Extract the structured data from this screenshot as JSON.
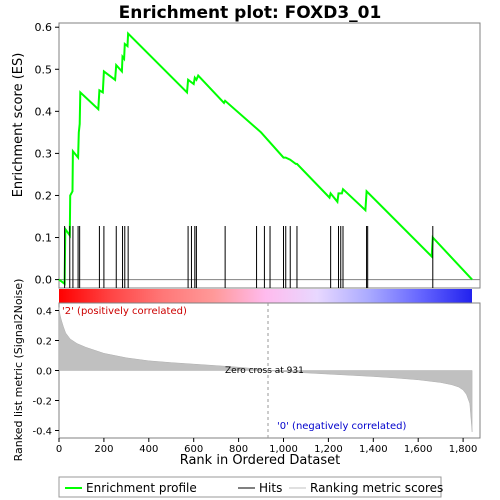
{
  "chart_data": {
    "type": "line",
    "title": "Enrichment plot: FOXD3_01",
    "es_panel": {
      "ylabel": "Enrichment score (ES)",
      "ylim": [
        -0.02,
        0.61
      ],
      "yticks": [
        "0.0",
        "0.1",
        "0.2",
        "0.3",
        "0.4",
        "0.5",
        "0.6"
      ],
      "ytick_values": [
        0.0,
        0.1,
        0.2,
        0.3,
        0.4,
        0.5,
        0.6
      ],
      "xlim": [
        0,
        1900
      ],
      "series": [
        {
          "name": "Enrichment profile",
          "color": "#00ff00",
          "x": [
            0,
            25,
            28,
            48,
            50,
            60,
            62,
            85,
            88,
            92,
            95,
            175,
            180,
            195,
            200,
            250,
            255,
            280,
            283,
            290,
            293,
            305,
            308,
            570,
            575,
            600,
            605,
            612,
            620,
            735,
            740,
            900,
            1000,
            1010,
            1030,
            1055,
            1060,
            1205,
            1210,
            1240,
            1245,
            1260,
            1265,
            1365,
            1370,
            1660,
            1665,
            1840
          ],
          "y": [
            0.0,
            -0.01,
            0.12,
            0.105,
            0.2,
            0.21,
            0.305,
            0.29,
            0.35,
            0.37,
            0.445,
            0.405,
            0.45,
            0.445,
            0.495,
            0.475,
            0.51,
            0.495,
            0.53,
            0.525,
            0.56,
            0.555,
            0.585,
            0.445,
            0.475,
            0.465,
            0.48,
            0.475,
            0.485,
            0.42,
            0.425,
            0.35,
            0.29,
            0.29,
            0.285,
            0.275,
            0.275,
            0.195,
            0.205,
            0.185,
            0.205,
            0.205,
            0.215,
            0.165,
            0.21,
            0.055,
            0.1,
            0.0
          ]
        }
      ]
    },
    "hits": [
      25,
      48,
      62,
      85,
      92,
      180,
      200,
      255,
      283,
      293,
      308,
      575,
      590,
      605,
      612,
      740,
      880,
      915,
      940,
      1000,
      1010,
      1030,
      1060,
      1210,
      1245,
      1255,
      1265,
      1370,
      1375,
      1665
    ],
    "color_bar": {
      "stops": [
        "#ff0000",
        "#ff4444",
        "#ff7777",
        "#ff9999",
        "#ffbbee",
        "#e8d8ff",
        "#aaaaff",
        "#6666ff",
        "#2222ee"
      ]
    },
    "metric_panel": {
      "ylabel": "Ranked list metric (Signal2Noise)",
      "xlabel": "Rank in Ordered Dataset",
      "ylim": [
        -0.45,
        0.45
      ],
      "yticks": [
        "0.4",
        "0.2",
        "0.0",
        "-0.2",
        "-0.4"
      ],
      "ytick_values": [
        0.4,
        0.2,
        0.0,
        -0.2,
        -0.4
      ],
      "xticks": [
        "0",
        "200",
        "400",
        "600",
        "800",
        "1,000",
        "1,200",
        "1,400",
        "1,600",
        "1,800"
      ],
      "xtick_values": [
        0,
        200,
        400,
        600,
        800,
        1000,
        1200,
        1400,
        1600,
        1800
      ],
      "x": [
        0,
        5,
        10,
        20,
        30,
        50,
        80,
        120,
        200,
        300,
        400,
        500,
        600,
        700,
        800,
        900,
        931,
        1000,
        1100,
        1200,
        1300,
        1400,
        1500,
        1600,
        1700,
        1750,
        1780,
        1800,
        1815,
        1830,
        1840
      ],
      "values": [
        0.42,
        0.37,
        0.34,
        0.29,
        0.25,
        0.21,
        0.18,
        0.155,
        0.115,
        0.085,
        0.065,
        0.053,
        0.043,
        0.033,
        0.022,
        0.008,
        0.0,
        -0.008,
        -0.016,
        -0.024,
        -0.032,
        -0.04,
        -0.05,
        -0.062,
        -0.08,
        -0.095,
        -0.11,
        -0.13,
        -0.16,
        -0.22,
        -0.41
      ],
      "pos_label": "'2' (positively correlated)",
      "neg_label": "'0' (negatively correlated)",
      "zero_cross_label": "Zero cross at 931",
      "zero_cross_value": 931
    },
    "legend": {
      "items": [
        {
          "label": "Enrichment profile",
          "color": "#00ff00"
        },
        {
          "label": "Hits",
          "color": "#000000"
        },
        {
          "label": "Ranking metric scores",
          "color": "#c0c0c0"
        }
      ]
    }
  }
}
